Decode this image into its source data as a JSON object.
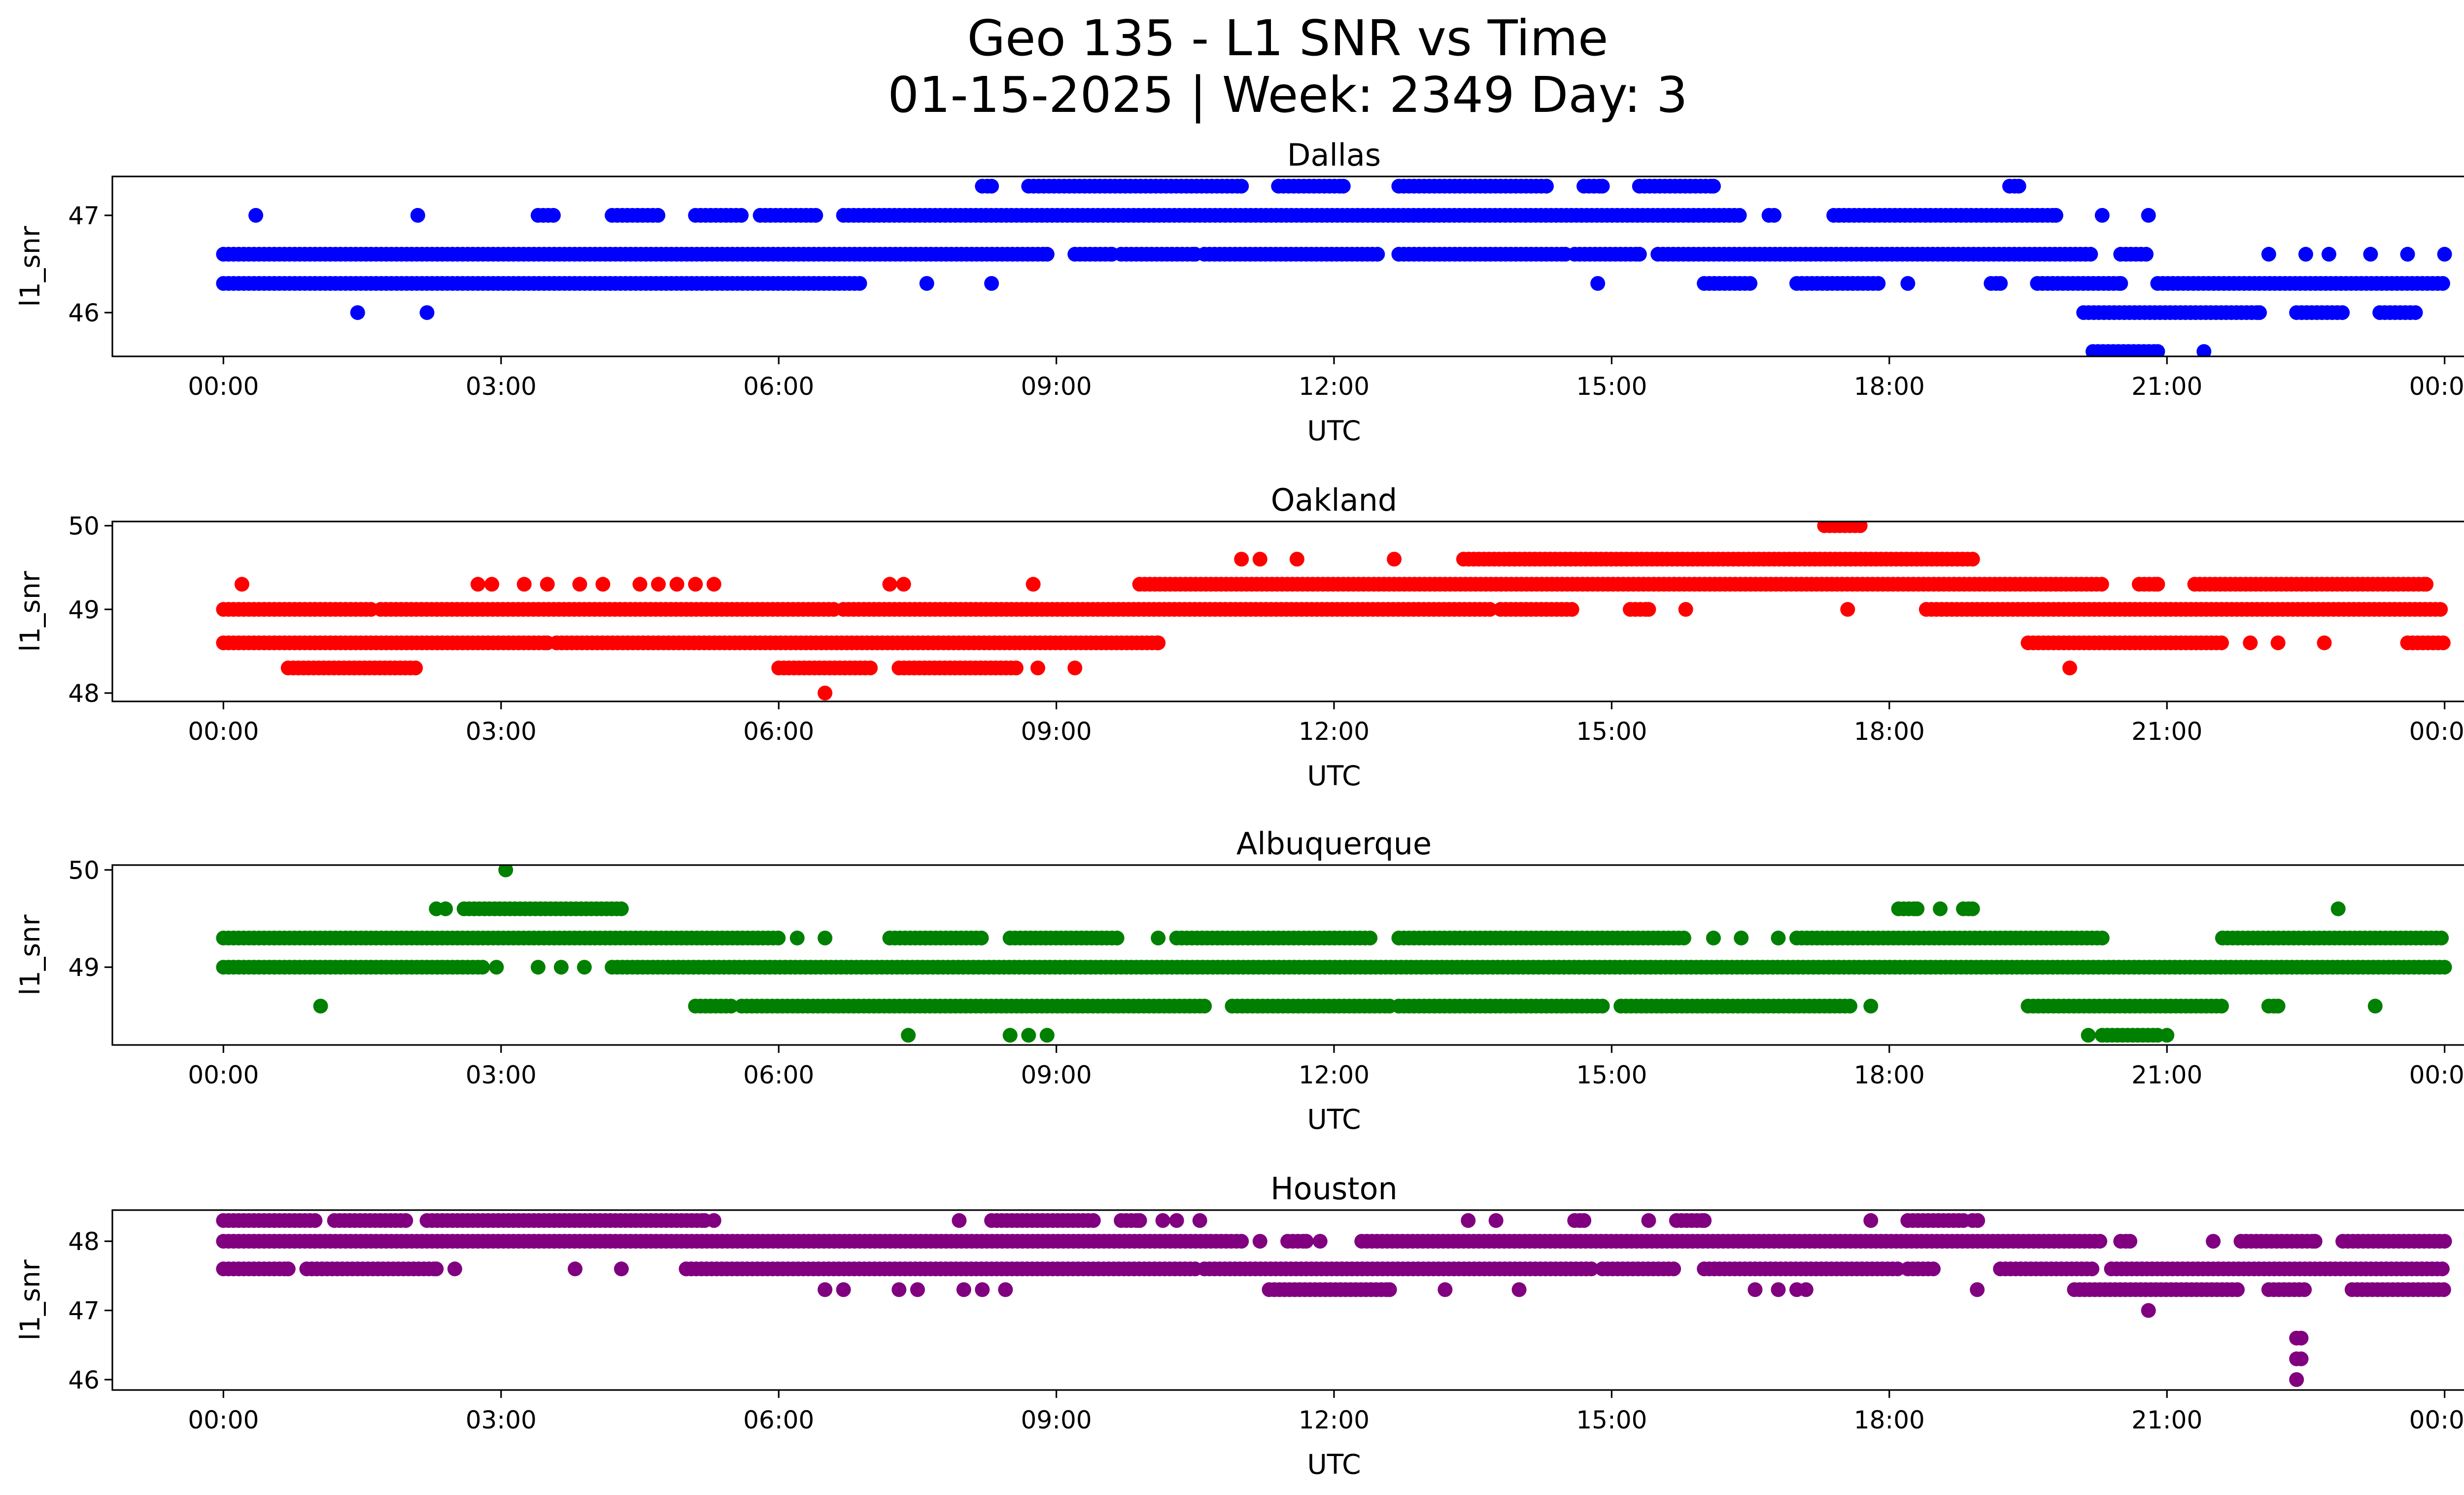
{
  "figure": {
    "title_line1": "Geo 135 - L1 SNR vs Time",
    "title_line2": "01-15-2025 | Week: 2349 Day: 3"
  },
  "chart_data": [
    {
      "type": "scatter",
      "title": "Dallas",
      "xlabel": "UTC",
      "ylabel": "l1_snr",
      "color": "#0000ff",
      "xticks": [
        "00:00",
        "03:00",
        "06:00",
        "09:00",
        "12:00",
        "15:00",
        "18:00",
        "21:00",
        "00:00"
      ],
      "xlim_hours": [
        -1.2,
        25.2
      ],
      "ylim": [
        45.55,
        47.4
      ],
      "yticks": [
        46,
        47
      ],
      "bands": [
        {
          "y": 46.6,
          "ranges": [
            [
              0,
              8.9
            ],
            [
              9.2,
              9.6
            ],
            [
              9.7,
              10.5
            ],
            [
              10.6,
              12.5
            ],
            [
              12.7,
              14.5
            ],
            [
              14.6,
              15.3
            ],
            [
              15.5,
              20.2
            ],
            [
              20.5,
              20.8
            ]
          ]
        },
        {
          "y": 46.3,
          "ranges": [
            [
              0,
              6.9
            ],
            [
              7.6,
              7.6
            ],
            [
              8.3,
              8.3
            ],
            [
              16,
              16.5
            ],
            [
              17,
              17.9
            ],
            [
              18.2,
              18.2
            ],
            [
              19.1,
              19.2
            ],
            [
              19.6,
              20.5
            ],
            [
              20.9,
              24
            ]
          ]
        },
        {
          "y": 47.0,
          "ranges": [
            [
              3.4,
              3.6
            ],
            [
              4.2,
              4.7
            ],
            [
              5.1,
              5.6
            ],
            [
              5.8,
              6.4
            ],
            [
              6.7,
              16.4
            ],
            [
              16.7,
              16.8
            ],
            [
              17.4,
              19.8
            ],
            [
              20.3,
              20.3
            ],
            [
              20.8,
              20.8
            ]
          ]
        },
        {
          "y": 47.3,
          "ranges": [
            [
              8.2,
              8.3
            ],
            [
              8.7,
              11
            ],
            [
              11.4,
              12.1
            ],
            [
              12.7,
              14.3
            ],
            [
              14.7,
              14.9
            ],
            [
              15.3,
              16.1
            ],
            [
              19.3,
              19.4
            ]
          ]
        },
        {
          "y": 46.0,
          "ranges": [
            [
              20.1,
              22
            ],
            [
              22.4,
              22.9
            ],
            [
              23.3,
              23.7
            ]
          ]
        },
        {
          "y": 45.6,
          "ranges": [
            [
              20.2,
              20.9
            ],
            [
              21.4,
              21.4
            ]
          ]
        }
      ],
      "points": [
        {
          "x": 0.35,
          "y": 47.0
        },
        {
          "x": 2.1,
          "y": 47.0
        },
        {
          "x": 1.45,
          "y": 46.0
        },
        {
          "x": 2.2,
          "y": 46.0
        },
        {
          "x": 14.85,
          "y": 46.3
        },
        {
          "x": 22.1,
          "y": 46.6
        },
        {
          "x": 22.5,
          "y": 46.6
        },
        {
          "x": 22.75,
          "y": 46.6
        },
        {
          "x": 23.2,
          "y": 46.6
        },
        {
          "x": 23.6,
          "y": 46.6
        },
        {
          "x": 24.0,
          "y": 46.6
        }
      ]
    },
    {
      "type": "scatter",
      "title": "Oakland",
      "xlabel": "UTC",
      "ylabel": "l1_snr",
      "color": "#ff0000",
      "xticks": [
        "00:00",
        "03:00",
        "06:00",
        "09:00",
        "12:00",
        "15:00",
        "18:00",
        "21:00",
        "00:00"
      ],
      "xlim_hours": [
        -1.2,
        25.2
      ],
      "ylim": [
        47.9,
        50.05
      ],
      "yticks": [
        48,
        49,
        50
      ],
      "bands": [
        {
          "y": 49.0,
          "ranges": [
            [
              0,
              1.6
            ],
            [
              1.7,
              6.6
            ],
            [
              6.7,
              13.7
            ],
            [
              13.8,
              14.6
            ],
            [
              15.2,
              15.4
            ],
            [
              18.4,
              24
            ]
          ]
        },
        {
          "y": 48.6,
          "ranges": [
            [
              0,
              3.5
            ],
            [
              3.6,
              10.1
            ],
            [
              19.5,
              21.6
            ],
            [
              23.6,
              24
            ]
          ]
        },
        {
          "y": 48.3,
          "ranges": [
            [
              0.7,
              2.1
            ],
            [
              6.0,
              7.0
            ],
            [
              7.3,
              8.6
            ]
          ]
        },
        {
          "y": 49.3,
          "ranges": [
            [
              9.9,
              20.3
            ],
            [
              20.7,
              20.9
            ],
            [
              21.3,
              23.8
            ]
          ]
        },
        {
          "y": 49.6,
          "ranges": [
            [
              13.4,
              18.9
            ]
          ]
        },
        {
          "y": 50.0,
          "ranges": [
            [
              17.3,
              17.7
            ]
          ]
        }
      ],
      "points": [
        {
          "x": 0.2,
          "y": 49.3
        },
        {
          "x": 2.75,
          "y": 49.3
        },
        {
          "x": 2.9,
          "y": 49.3
        },
        {
          "x": 3.25,
          "y": 49.3
        },
        {
          "x": 3.5,
          "y": 49.3
        },
        {
          "x": 3.85,
          "y": 49.3
        },
        {
          "x": 4.1,
          "y": 49.3
        },
        {
          "x": 4.5,
          "y": 49.3
        },
        {
          "x": 4.7,
          "y": 49.3
        },
        {
          "x": 4.9,
          "y": 49.3
        },
        {
          "x": 5.1,
          "y": 49.3
        },
        {
          "x": 5.3,
          "y": 49.3
        },
        {
          "x": 7.2,
          "y": 49.3
        },
        {
          "x": 7.35,
          "y": 49.3
        },
        {
          "x": 8.75,
          "y": 49.3
        },
        {
          "x": 6.5,
          "y": 48.0
        },
        {
          "x": 8.8,
          "y": 48.3
        },
        {
          "x": 9.2,
          "y": 48.3
        },
        {
          "x": 11.0,
          "y": 49.6
        },
        {
          "x": 11.2,
          "y": 49.6
        },
        {
          "x": 11.6,
          "y": 49.6
        },
        {
          "x": 12.65,
          "y": 49.6
        },
        {
          "x": 15.8,
          "y": 49.0
        },
        {
          "x": 17.55,
          "y": 49.0
        },
        {
          "x": 19.95,
          "y": 48.3
        },
        {
          "x": 21.9,
          "y": 48.6
        },
        {
          "x": 22.2,
          "y": 48.6
        },
        {
          "x": 22.7,
          "y": 48.6
        }
      ]
    },
    {
      "type": "scatter",
      "title": "Albuquerque",
      "xlabel": "UTC",
      "ylabel": "l1_snr",
      "color": "#008000",
      "xticks": [
        "00:00",
        "03:00",
        "06:00",
        "09:00",
        "12:00",
        "15:00",
        "18:00",
        "21:00",
        "00:00"
      ],
      "xlim_hours": [
        -1.2,
        25.2
      ],
      "ylim": [
        48.2,
        50.05
      ],
      "yticks": [
        49,
        50
      ],
      "bands": [
        {
          "y": 49.3,
          "ranges": [
            [
              0,
              6.0
            ],
            [
              7.2,
              8.2
            ],
            [
              8.5,
              9.7
            ],
            [
              10.3,
              12.4
            ],
            [
              12.7,
              15.8
            ],
            [
              17.0,
              20.3
            ],
            [
              21.6,
              24
            ]
          ]
        },
        {
          "y": 49.0,
          "ranges": [
            [
              0,
              2.8
            ],
            [
              4.2,
              24
            ]
          ]
        },
        {
          "y": 48.6,
          "ranges": [
            [
              5.1,
              5.5
            ],
            [
              5.6,
              10.6
            ],
            [
              10.9,
              12.6
            ],
            [
              12.7,
              14.9
            ],
            [
              15.1,
              17.6
            ],
            [
              17.8,
              17.8
            ],
            [
              19.5,
              21.6
            ],
            [
              22.1,
              22.2
            ]
          ]
        },
        {
          "y": 48.3,
          "ranges": [
            [
              20.3,
              20.9
            ]
          ]
        },
        {
          "y": 49.6,
          "ranges": [
            [
              2.6,
              4.3
            ],
            [
              18.1,
              18.3
            ],
            [
              18.8,
              18.9
            ]
          ]
        }
      ],
      "points": [
        {
          "x": 1.05,
          "y": 48.6
        },
        {
          "x": 2.3,
          "y": 49.6
        },
        {
          "x": 2.4,
          "y": 49.6
        },
        {
          "x": 3.05,
          "y": 50.0
        },
        {
          "x": 2.95,
          "y": 49.0
        },
        {
          "x": 3.4,
          "y": 49.0
        },
        {
          "x": 3.65,
          "y": 49.0
        },
        {
          "x": 3.9,
          "y": 49.0
        },
        {
          "x": 6.2,
          "y": 49.3
        },
        {
          "x": 6.5,
          "y": 49.3
        },
        {
          "x": 10.1,
          "y": 49.3
        },
        {
          "x": 7.4,
          "y": 48.3
        },
        {
          "x": 8.5,
          "y": 48.3
        },
        {
          "x": 8.7,
          "y": 48.3
        },
        {
          "x": 8.9,
          "y": 48.3
        },
        {
          "x": 16.1,
          "y": 49.3
        },
        {
          "x": 16.4,
          "y": 49.3
        },
        {
          "x": 16.8,
          "y": 49.3
        },
        {
          "x": 18.55,
          "y": 49.6
        },
        {
          "x": 20.15,
          "y": 48.3
        },
        {
          "x": 21.0,
          "y": 48.3
        },
        {
          "x": 22.85,
          "y": 49.6
        },
        {
          "x": 23.25,
          "y": 48.6
        }
      ]
    },
    {
      "type": "scatter",
      "title": "Houston",
      "xlabel": "UTC",
      "ylabel": "l1_snr",
      "color": "#800080",
      "xticks": [
        "00:00",
        "03:00",
        "06:00",
        "09:00",
        "12:00",
        "15:00",
        "18:00",
        "21:00",
        "00:00"
      ],
      "xlim_hours": [
        -1.2,
        25.2
      ],
      "ylim": [
        45.85,
        48.45
      ],
      "yticks": [
        46,
        47,
        48
      ],
      "bands": [
        {
          "y": 48.0,
          "ranges": [
            [
              0,
              11.0
            ],
            [
              11.5,
              11.7
            ],
            [
              12.3,
              20.3
            ],
            [
              20.5,
              20.6
            ],
            [
              21.8,
              22.6
            ],
            [
              22.9,
              24
            ]
          ]
        },
        {
          "y": 47.6,
          "ranges": [
            [
              0,
              0.7
            ],
            [
              0.9,
              2.3
            ],
            [
              5.0,
              10.5
            ],
            [
              10.6,
              14.8
            ],
            [
              14.9,
              15.7
            ],
            [
              16.0,
              18.1
            ],
            [
              18.2,
              18.5
            ],
            [
              19.2,
              20.2
            ],
            [
              20.4,
              24
            ]
          ]
        },
        {
          "y": 48.3,
          "ranges": [
            [
              0,
              1.0
            ],
            [
              1.2,
              2.0
            ],
            [
              2.2,
              5.2
            ],
            [
              8.3,
              9.4
            ],
            [
              9.7,
              9.9
            ],
            [
              14.6,
              14.7
            ],
            [
              15.7,
              16.0
            ],
            [
              18.2,
              18.8
            ],
            [
              18.9,
              19.0
            ]
          ]
        },
        {
          "y": 47.3,
          "ranges": [
            [
              11.3,
              12.6
            ],
            [
              20.0,
              21.8
            ],
            [
              22.1,
              22.5
            ],
            [
              23.0,
              24
            ]
          ]
        }
      ],
      "points": [
        {
          "x": 1.0,
          "y": 47.6
        },
        {
          "x": 2.5,
          "y": 47.6
        },
        {
          "x": 3.8,
          "y": 47.6
        },
        {
          "x": 4.3,
          "y": 47.6
        },
        {
          "x": 5.3,
          "y": 48.3
        },
        {
          "x": 6.5,
          "y": 47.3
        },
        {
          "x": 6.7,
          "y": 47.3
        },
        {
          "x": 7.3,
          "y": 47.3
        },
        {
          "x": 7.5,
          "y": 47.3
        },
        {
          "x": 8.0,
          "y": 47.3
        },
        {
          "x": 8.2,
          "y": 47.3
        },
        {
          "x": 8.45,
          "y": 47.3
        },
        {
          "x": 7.95,
          "y": 48.3
        },
        {
          "x": 10.15,
          "y": 48.3
        },
        {
          "x": 10.3,
          "y": 48.3
        },
        {
          "x": 10.55,
          "y": 48.3
        },
        {
          "x": 11.2,
          "y": 48.0
        },
        {
          "x": 11.85,
          "y": 48.0
        },
        {
          "x": 13.2,
          "y": 47.3
        },
        {
          "x": 13.45,
          "y": 48.3
        },
        {
          "x": 13.75,
          "y": 48.3
        },
        {
          "x": 14.0,
          "y": 47.3
        },
        {
          "x": 14.6,
          "y": 48.3
        },
        {
          "x": 15.4,
          "y": 48.3
        },
        {
          "x": 16.55,
          "y": 47.3
        },
        {
          "x": 16.8,
          "y": 47.3
        },
        {
          "x": 17.0,
          "y": 47.3
        },
        {
          "x": 17.1,
          "y": 47.3
        },
        {
          "x": 17.8,
          "y": 48.3
        },
        {
          "x": 18.95,
          "y": 47.3
        },
        {
          "x": 20.8,
          "y": 47.0
        },
        {
          "x": 21.5,
          "y": 48.0
        },
        {
          "x": 22.4,
          "y": 46.6
        },
        {
          "x": 22.4,
          "y": 46.3
        },
        {
          "x": 22.4,
          "y": 46.0
        },
        {
          "x": 22.45,
          "y": 46.6
        },
        {
          "x": 22.45,
          "y": 46.3
        }
      ]
    }
  ]
}
